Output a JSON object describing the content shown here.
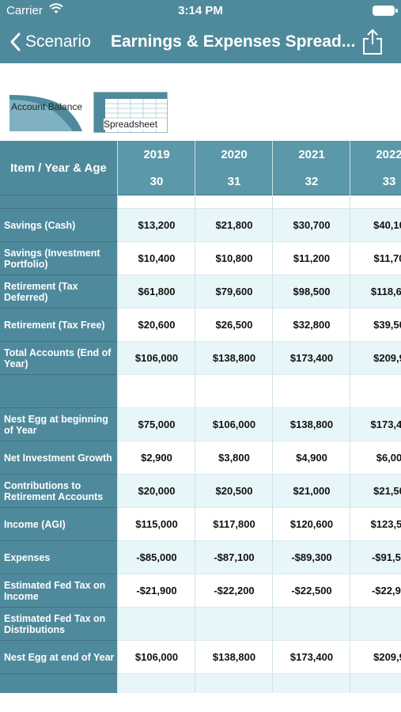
{
  "status": {
    "carrier": "Carrier",
    "time": "3:14 PM"
  },
  "nav": {
    "back_label": "Scenario",
    "title": "Earnings & Expenses Spread..."
  },
  "thumbs": {
    "account_balance": "Account Balance",
    "spreadsheet": "Spreadsheet"
  },
  "table": {
    "header_label": "Item / Year & Age",
    "years": [
      "2019",
      "2020",
      "2021",
      "2022"
    ],
    "ages": [
      "30",
      "31",
      "32",
      "33"
    ],
    "rows": [
      {
        "label": "",
        "values": [
          "",
          "",
          "",
          ""
        ]
      },
      {
        "label": "Savings (Cash)",
        "values": [
          "$13,200",
          "$21,800",
          "$30,700",
          "$40,10"
        ]
      },
      {
        "label": "Savings (Investment Portfolio)",
        "values": [
          "$10,400",
          "$10,800",
          "$11,200",
          "$11,70"
        ]
      },
      {
        "label": "Retirement (Tax Deferred)",
        "values": [
          "$61,800",
          "$79,600",
          "$98,500",
          "$118,60"
        ]
      },
      {
        "label": "Retirement (Tax Free)",
        "values": [
          "$20,600",
          "$26,500",
          "$32,800",
          "$39,50"
        ]
      },
      {
        "label": "Total Accounts (End of Year)",
        "values": [
          "$106,000",
          "$138,800",
          "$173,400",
          "$209,9"
        ]
      },
      {
        "label": "",
        "values": [
          "",
          "",
          "",
          ""
        ]
      },
      {
        "label": "Nest Egg at beginning of Year",
        "values": [
          "$75,000",
          "$106,000",
          "$138,800",
          "$173,40"
        ]
      },
      {
        "label": "Net Investment Growth",
        "values": [
          "$2,900",
          "$3,800",
          "$4,900",
          "$6,00"
        ]
      },
      {
        "label": "Contributions to Retirement Accounts",
        "values": [
          "$20,000",
          "$20,500",
          "$21,000",
          "$21,50"
        ]
      },
      {
        "label": "Income (AGI)",
        "values": [
          "$115,000",
          "$117,800",
          "$120,600",
          "$123,50"
        ]
      },
      {
        "label": "Expenses",
        "values": [
          "-$85,000",
          "-$87,100",
          "-$89,300",
          "-$91,50"
        ]
      },
      {
        "label": "Estimated Fed Tax on Income",
        "values": [
          "-$21,900",
          "-$22,200",
          "-$22,500",
          "-$22,90"
        ]
      },
      {
        "label": "Estimated Fed Tax on Distributions",
        "values": [
          "",
          "",
          "",
          ""
        ]
      },
      {
        "label": "Nest Egg at end of Year",
        "values": [
          "$106,000",
          "$138,800",
          "$173,400",
          "$209,9"
        ]
      },
      {
        "label": "",
        "values": [
          "",
          "",
          "",
          ""
        ]
      }
    ]
  },
  "colors": {
    "header_bg": "#4f8a9c",
    "alt_row": "#e7f6f8"
  }
}
